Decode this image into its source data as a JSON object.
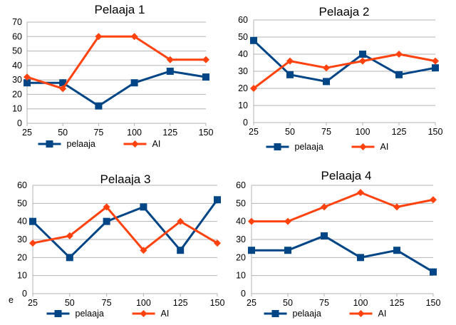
{
  "chart_data": [
    {
      "type": "line",
      "title": "Pelaaja 1",
      "x": [
        25,
        50,
        75,
        100,
        125,
        150
      ],
      "ylim": [
        0,
        70
      ],
      "ytick_step": 10,
      "grid": true,
      "legend": "bottom",
      "series": [
        {
          "name": "pelaaja",
          "color": "#004586",
          "marker": "square",
          "values": [
            28,
            28,
            12,
            28,
            36,
            32
          ]
        },
        {
          "name": "AI",
          "color": "#ff420e",
          "marker": "diamond",
          "values": [
            32,
            24,
            60,
            60,
            44,
            44
          ]
        }
      ]
    },
    {
      "type": "line",
      "title": "Pelaaja 2",
      "x": [
        25,
        50,
        75,
        100,
        125,
        150
      ],
      "ylim": [
        0,
        60
      ],
      "ytick_step": 10,
      "grid": true,
      "legend": "bottom",
      "series": [
        {
          "name": "pelaaja",
          "color": "#004586",
          "marker": "square",
          "values": [
            48,
            28,
            24,
            40,
            28,
            32
          ]
        },
        {
          "name": "AI",
          "color": "#ff420e",
          "marker": "diamond",
          "values": [
            20,
            36,
            32,
            36,
            40,
            36
          ]
        }
      ]
    },
    {
      "type": "line",
      "title": "Pelaaja 3",
      "x": [
        25,
        50,
        75,
        100,
        125,
        150
      ],
      "ylim": [
        0,
        60
      ],
      "ytick_step": 10,
      "grid": true,
      "legend": "bottom",
      "series": [
        {
          "name": "pelaaja",
          "color": "#004586",
          "marker": "square",
          "values": [
            40,
            20,
            40,
            48,
            24,
            52
          ]
        },
        {
          "name": "AI",
          "color": "#ff420e",
          "marker": "diamond",
          "values": [
            28,
            32,
            48,
            24,
            40,
            28
          ]
        }
      ]
    },
    {
      "type": "line",
      "title": "Pelaaja 4",
      "x": [
        25,
        50,
        75,
        100,
        125,
        150
      ],
      "ylim": [
        0,
        60
      ],
      "ytick_step": 10,
      "grid": true,
      "legend": "bottom",
      "series": [
        {
          "name": "pelaaja",
          "color": "#004586",
          "marker": "square",
          "values": [
            24,
            24,
            32,
            20,
            24,
            12
          ]
        },
        {
          "name": "AI",
          "color": "#ff420e",
          "marker": "diamond",
          "values": [
            40,
            40,
            48,
            56,
            48,
            52
          ]
        }
      ]
    }
  ],
  "stray_text": "e"
}
